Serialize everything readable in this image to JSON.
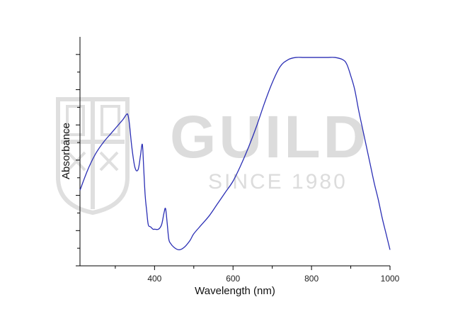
{
  "watermark": {
    "title": "GUILD",
    "subtitle": "SINCE 1980"
  },
  "chart_data": {
    "type": "line",
    "title": "",
    "xlabel": "Wavelength (nm)",
    "ylabel": "Absorbance",
    "xlim": [
      210,
      1000
    ],
    "ylim": [
      0,
      1
    ],
    "x_ticks": [
      400,
      600,
      800,
      1000
    ],
    "y_tick_labels_shown": false,
    "grid": false,
    "legend": "none",
    "series": [
      {
        "color": "#2b2fb5",
        "x": [
          210,
          230,
          250,
          270,
          290,
          310,
          320,
          328,
          332,
          336,
          342,
          350,
          358,
          364,
          368,
          370,
          372,
          376,
          380,
          384,
          390,
          396,
          400,
          410,
          418,
          424,
          428,
          432,
          436,
          440,
          450,
          462,
          475,
          490,
          500,
          520,
          540,
          560,
          580,
          600,
          620,
          640,
          660,
          680,
          700,
          720,
          740,
          760,
          780,
          800,
          820,
          840,
          860,
          880,
          890,
          900,
          910,
          920,
          930,
          940,
          950,
          960,
          970,
          980,
          990,
          1000
        ],
        "values": [
          0.33,
          0.42,
          0.49,
          0.54,
          0.58,
          0.62,
          0.64,
          0.66,
          0.66,
          0.62,
          0.52,
          0.43,
          0.42,
          0.48,
          0.53,
          0.51,
          0.44,
          0.31,
          0.24,
          0.18,
          0.17,
          0.16,
          0.16,
          0.16,
          0.18,
          0.23,
          0.25,
          0.19,
          0.12,
          0.1,
          0.08,
          0.07,
          0.08,
          0.11,
          0.14,
          0.18,
          0.22,
          0.27,
          0.32,
          0.37,
          0.44,
          0.52,
          0.61,
          0.71,
          0.8,
          0.87,
          0.9,
          0.91,
          0.91,
          0.91,
          0.91,
          0.91,
          0.91,
          0.9,
          0.88,
          0.83,
          0.77,
          0.68,
          0.6,
          0.52,
          0.44,
          0.36,
          0.29,
          0.21,
          0.14,
          0.07
        ]
      }
    ]
  }
}
